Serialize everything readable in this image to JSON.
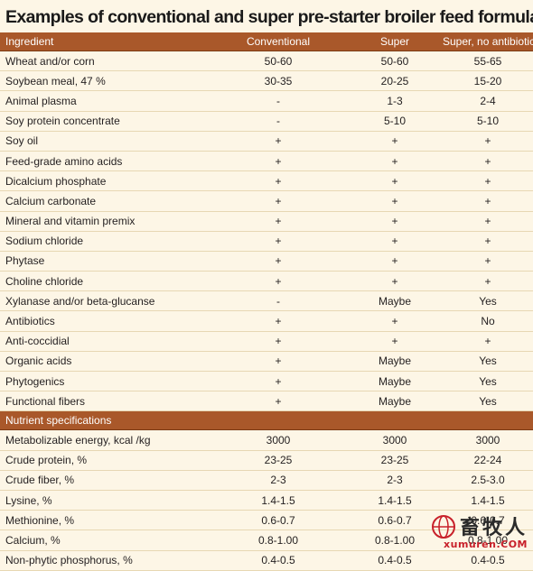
{
  "title": "Examples of conventional and super pre-starter broiler feed formulas",
  "header": [
    "Ingredient",
    "Conventional",
    "Super",
    "Super, no antibiotics"
  ],
  "ingredients": [
    [
      "Wheat and/or corn",
      "50-60",
      "50-60",
      "55-65"
    ],
    [
      "Soybean meal, 47 %",
      "30-35",
      "20-25",
      "15-20"
    ],
    [
      "Animal plasma",
      "-",
      "1-3",
      "2-4"
    ],
    [
      "Soy protein concentrate",
      "-",
      "5-10",
      "5-10"
    ],
    [
      "Soy oil",
      "+",
      "+",
      "+"
    ],
    [
      "Feed-grade amino acids",
      "+",
      "+",
      "+"
    ],
    [
      "Dicalcium phosphate",
      "+",
      "+",
      "+"
    ],
    [
      "Calcium carbonate",
      "+",
      "+",
      "+"
    ],
    [
      "Mineral and vitamin premix",
      "+",
      "+",
      "+"
    ],
    [
      "Sodium chloride",
      "+",
      "+",
      "+"
    ],
    [
      "Phytase",
      "+",
      "+",
      "+"
    ],
    [
      "Choline chloride",
      "+",
      "+",
      "+"
    ],
    [
      "Xylanase and/or beta-glucanse",
      "-",
      "Maybe",
      "Yes"
    ],
    [
      "Antibiotics",
      "+",
      "+",
      "No"
    ],
    [
      "Anti-coccidial",
      "+",
      "+",
      "+"
    ],
    [
      "Organic acids",
      "+",
      "Maybe",
      "Yes"
    ],
    [
      "Phytogenics",
      "+",
      "Maybe",
      "Yes"
    ],
    [
      "Functional fibers",
      "+",
      "Maybe",
      "Yes"
    ]
  ],
  "nutrient_header": "Nutrient specifications",
  "nutrients": [
    [
      "Metabolizable energy, kcal /kg",
      "3000",
      "3000",
      "3000"
    ],
    [
      "Crude protein, %",
      "23-25",
      "23-25",
      "22-24"
    ],
    [
      "Crude fiber, %",
      "2-3",
      "2-3",
      "2.5-3.0"
    ],
    [
      "Lysine, %",
      "1.4-1.5",
      "1.4-1.5",
      "1.4-1.5"
    ],
    [
      "Methionine, %",
      "0.6-0.7",
      "0.6-0.7",
      "0.6-0.7"
    ],
    [
      "Calcium, %",
      "0.8-1.00",
      "0.8-1.00",
      "0.8-1.00"
    ],
    [
      "Non-phytic phosphorus, %",
      "0.4-0.5",
      "0.4-0.5",
      "0.4-0.5"
    ]
  ],
  "watermark": {
    "cn": "畜牧人",
    "en": "xumuren.COM",
    "logo_icon": "globe-logo-icon",
    "accent": "#c8202a"
  }
}
